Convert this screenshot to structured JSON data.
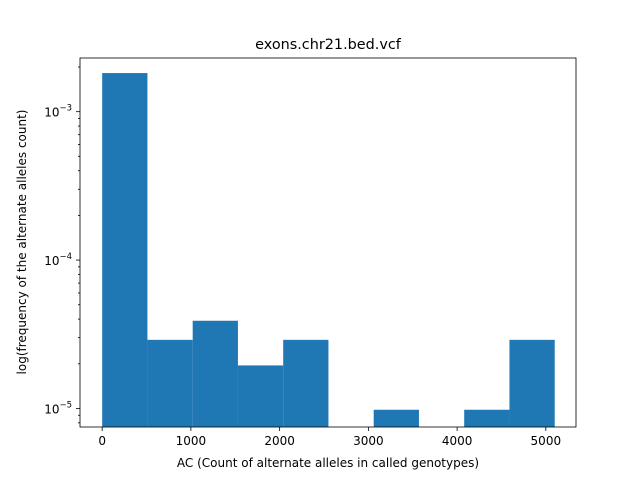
{
  "chart_data": {
    "type": "bar",
    "title": "exons.chr21.bed.vcf",
    "xlabel": "AC (Count of alternate alleles in called genotypes)",
    "ylabel": "log(frequency of the alternate alleles count)",
    "yscale": "log",
    "bar_color": "#1f77b4",
    "xlim": [
      -250,
      5340
    ],
    "ylim": [
      7.5e-06,
      0.0023
    ],
    "x_ticks": [
      0,
      1000,
      2000,
      3000,
      4000,
      5000
    ],
    "x_tick_labels": [
      "0",
      "1000",
      "2000",
      "3000",
      "4000",
      "5000"
    ],
    "y_ticks": [
      {
        "value": 1e-05,
        "base": "10",
        "exp": "−5"
      },
      {
        "value": 0.0001,
        "base": "10",
        "exp": "−4"
      },
      {
        "value": 0.001,
        "base": "10",
        "exp": "−3"
      }
    ],
    "bins": [
      {
        "x0": 0,
        "x1": 510,
        "value": 0.00182
      },
      {
        "x0": 510,
        "x1": 1020,
        "value": 2.9e-05
      },
      {
        "x0": 1020,
        "x1": 1530,
        "value": 3.9e-05
      },
      {
        "x0": 1530,
        "x1": 2040,
        "value": 1.95e-05
      },
      {
        "x0": 2040,
        "x1": 2550,
        "value": 2.9e-05
      },
      {
        "x0": 2550,
        "x1": 3060,
        "value": 0
      },
      {
        "x0": 3060,
        "x1": 3570,
        "value": 9.8e-06
      },
      {
        "x0": 3570,
        "x1": 4080,
        "value": 0
      },
      {
        "x0": 4080,
        "x1": 4590,
        "value": 9.8e-06
      },
      {
        "x0": 4590,
        "x1": 5100,
        "value": 2.9e-05
      }
    ],
    "grid": false,
    "legend": "none"
  }
}
